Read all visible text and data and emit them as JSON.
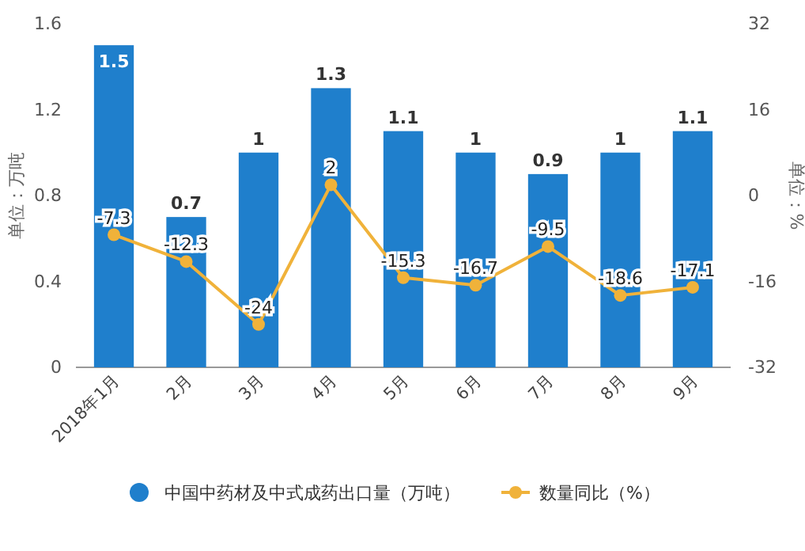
{
  "chart_data": {
    "type": "bar",
    "categories": [
      "2018年1月",
      "2月",
      "3月",
      "4月",
      "5月",
      "6月",
      "7月",
      "8月",
      "9月"
    ],
    "series": [
      {
        "name": "中国中药材及中式成药出口量（万吨）",
        "color": "#1f7fcc",
        "values": [
          1.5,
          0.7,
          1,
          1.3,
          1.1,
          1,
          0.9,
          1,
          1.1
        ]
      },
      {
        "name": "数量同比（%）",
        "type": "line",
        "axis": "y2",
        "color": "#f0b23a",
        "marker": "circle",
        "values": [
          -7.3,
          -12.3,
          -24,
          2,
          -15.3,
          -16.7,
          -9.5,
          -18.6,
          -17.1
        ]
      }
    ],
    "ylabel": "单位：万吨",
    "y2label": "单位：%",
    "ylim": [
      0,
      1.6
    ],
    "yticks": [
      0,
      0.4,
      0.8,
      1.2,
      1.6
    ],
    "y2lim": [
      -32,
      32
    ],
    "y2ticks": [
      -32,
      -16,
      0,
      16,
      32
    ],
    "data_labels": true,
    "legend": "bottom",
    "grid": false
  }
}
